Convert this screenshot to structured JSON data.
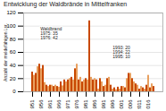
{
  "chart_data": {
    "type": "bar",
    "title": "Entwicklung der Waldbrände in Mittelfranken",
    "ylabel": "Anzahl der meldefähigen Lsr.",
    "categories": [
      "1951",
      null,
      null,
      null,
      null,
      "1956",
      null,
      null,
      null,
      null,
      "1961",
      null,
      null,
      null,
      null,
      "1966",
      null,
      null,
      null,
      null,
      "1971",
      null,
      null,
      null,
      null,
      "1976",
      null,
      null,
      null,
      null,
      "1981",
      null,
      null,
      null,
      null,
      "1986",
      null,
      null,
      null,
      null,
      "1991",
      null,
      null,
      null,
      null,
      "1996",
      null,
      null,
      null,
      null,
      "2001",
      null,
      null,
      null,
      null,
      "2006",
      null,
      null,
      null,
      null,
      "2011",
      null,
      null,
      null,
      null,
      "2016",
      null,
      null,
      null
    ],
    "values": [
      30,
      25,
      28,
      38,
      42,
      35,
      40,
      14,
      10,
      8,
      10,
      10,
      8,
      10,
      8,
      7,
      15,
      9,
      18,
      15,
      18,
      20,
      22,
      18,
      35,
      42,
      18,
      22,
      15,
      18,
      20,
      18,
      108,
      22,
      18,
      20,
      18,
      4,
      20,
      15,
      8,
      10,
      20,
      22,
      10,
      4,
      6,
      3,
      7,
      4,
      8,
      8,
      6,
      20,
      28,
      28,
      20,
      15,
      12,
      10,
      4,
      8,
      6,
      4,
      10,
      25,
      6,
      12,
      8
    ],
    "colors": [
      "#c84800",
      "#e8a060",
      "#c84800",
      "#e8a060",
      "#c84800",
      "#e8a060",
      "#c84800",
      "#e8a060",
      "#c84800",
      "#e8a060",
      "#c84800",
      "#e8a060",
      "#c84800",
      "#e8a060",
      "#c84800",
      "#e8a060",
      "#c84800",
      "#e8a060",
      "#c84800",
      "#e8a060",
      "#c84800",
      "#e8a060",
      "#c84800",
      "#e8a060",
      "#c84800",
      "#e8a060",
      "#c84800",
      "#e8a060",
      "#c84800",
      "#e8a060",
      "#c84800",
      "#e8a060",
      "#c84800",
      "#e8a060",
      "#c84800",
      "#e8a060",
      "#c84800",
      "#e8a060",
      "#c84800",
      "#e8a060",
      "#c84800",
      "#e8a060",
      "#c84800",
      "#e8a060",
      "#c84800",
      "#e8a060",
      "#c84800",
      "#e8a060",
      "#c84800",
      "#e8a060",
      "#c84800",
      "#e8a060",
      "#c84800",
      "#e8a060",
      "#c84800",
      "#e8a060",
      "#c84800",
      "#e8a060",
      "#c84800",
      "#e8a060",
      "#c84800",
      "#e8a060",
      "#c84800",
      "#e8a060",
      "#c84800",
      "#e8a060",
      "#c84800",
      "#e8a060",
      "#c84800"
    ],
    "ylim": [
      0,
      120
    ],
    "yticks": [
      0,
      20,
      40,
      60,
      80,
      100,
      120
    ],
    "grid": true,
    "annotations": [
      "Waldbrand\n1975: 35\n1976: 42",
      "1993: 20\n1994: 22\n1995: 10"
    ]
  }
}
